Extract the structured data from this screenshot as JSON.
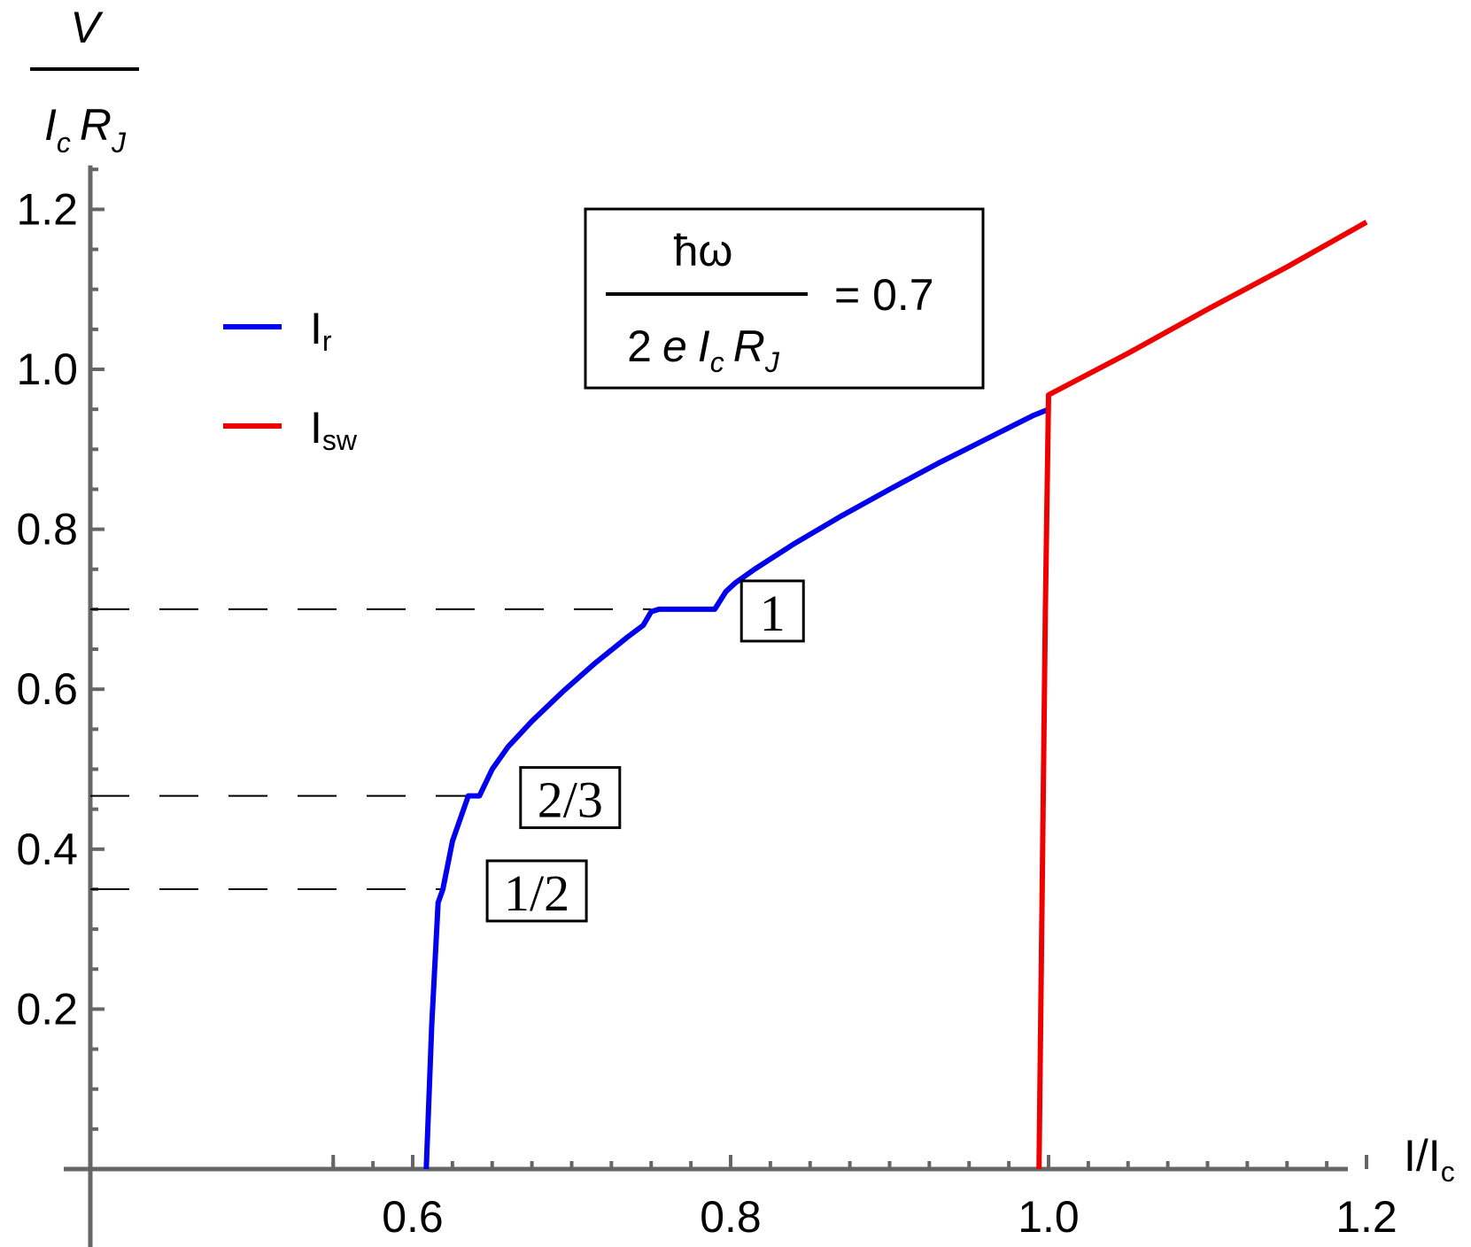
{
  "chart_data": {
    "type": "line",
    "title": "",
    "xlabel": {
      "main": "I/I",
      "sub": "c"
    },
    "ylabel": {
      "numerator": "V",
      "denominator": {
        "i": "I",
        "i_sub": "c",
        "r": "R",
        "r_sub": "J"
      }
    },
    "xlim": [
      0.53,
      1.215
    ],
    "ylim": [
      -0.1,
      1.255
    ],
    "x_ticks": [
      "0.6",
      "0.8",
      "1.0",
      "1.2"
    ],
    "y_ticks": [
      "0.2",
      "0.4",
      "0.6",
      "0.8",
      "1.0",
      "1.2"
    ],
    "annotation": {
      "numerator": "ħω",
      "denominator": {
        "prefix": "2",
        "e": "e",
        "i": "I",
        "i_sub": "c",
        "r": "R",
        "r_sub": "J"
      },
      "equals": "= 0.7"
    },
    "legend": [
      {
        "key": "Ir",
        "main": "I",
        "sub": "r",
        "color": "#0000ee"
      },
      {
        "key": "Isw",
        "main": "I",
        "sub": "sw",
        "color": "#ee0000"
      }
    ],
    "reference_lines": [
      {
        "y": 0.7,
        "label": "1",
        "x_end": 0.75
      },
      {
        "y": 0.4667,
        "label": "2/3",
        "x_end": 0.64
      },
      {
        "y": 0.35,
        "label": "1/2",
        "x_end": 0.619
      }
    ],
    "series": [
      {
        "name": "Ir",
        "color": "#0000ee",
        "x": [
          0.6085,
          0.612,
          0.616,
          0.619,
          0.625,
          0.635,
          0.642,
          0.65,
          0.66,
          0.675,
          0.695,
          0.715,
          0.735,
          0.745,
          0.75,
          0.755,
          0.76,
          0.79,
          0.797,
          0.803,
          0.815,
          0.84,
          0.87,
          0.9,
          0.93,
          0.96,
          0.99,
          1.0
        ],
        "y": [
          0.0,
          0.18,
          0.333,
          0.35,
          0.41,
          0.4667,
          0.4667,
          0.5,
          0.528,
          0.56,
          0.598,
          0.633,
          0.665,
          0.68,
          0.697,
          0.7,
          0.7,
          0.7,
          0.722,
          0.733,
          0.75,
          0.782,
          0.817,
          0.85,
          0.882,
          0.912,
          0.942,
          0.95
        ]
      },
      {
        "name": "Isw",
        "color": "#ee0000",
        "x": [
          0.994,
          0.996,
          0.998,
          1.0,
          1.05,
          1.1,
          1.15,
          1.2
        ],
        "y": [
          0.0,
          0.35,
          0.7,
          0.968,
          1.02,
          1.075,
          1.128,
          1.184
        ]
      }
    ]
  }
}
